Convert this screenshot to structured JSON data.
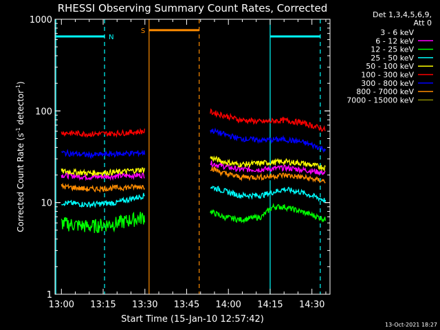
{
  "chart_data": {
    "type": "line",
    "title": "RHESSI Observing Summary Count Rates, Corrected",
    "xlabel": "Start Time (15-Jan-10 12:57:42)",
    "ylabel_main": "Corrected Count Rate (s",
    "ylabel_sup1": "-1",
    "ylabel_mid": " detector",
    "ylabel_sup2": "-1",
    "ylabel_end": ")",
    "yscale": "log",
    "ylim": [
      1,
      1000
    ],
    "xlim_minutes": [
      -2.3,
      96.5
    ],
    "x_ticks": [
      {
        "m": 0,
        "label": "13:00"
      },
      {
        "m": 15,
        "label": "13:15"
      },
      {
        "m": 30,
        "label": "13:30"
      },
      {
        "m": 45,
        "label": "13:45"
      },
      {
        "m": 60,
        "label": "14:00"
      },
      {
        "m": 75,
        "label": "14:15"
      },
      {
        "m": 90,
        "label": "14:30"
      }
    ],
    "y_ticks": [
      {
        "v": 1,
        "label": "1"
      },
      {
        "v": 10,
        "label": "10"
      },
      {
        "v": 100,
        "label": "100"
      },
      {
        "v": 1000,
        "label": "1000"
      }
    ],
    "legend_header_1": "Det 1,3,4,5,6,9,",
    "legend_header_2": "Att 0",
    "legend_placement": "top-right",
    "series": [
      {
        "name": "3 - 6 keV",
        "color": "#000000",
        "seg1": [
          [
            0,
            16
          ],
          [
            10,
            15
          ],
          [
            20,
            15.5
          ],
          [
            30,
            16
          ]
        ],
        "seg2": [
          [
            53.5,
            26
          ],
          [
            58,
            23
          ],
          [
            64,
            20
          ],
          [
            72,
            19
          ],
          [
            80,
            18
          ],
          [
            86,
            18
          ],
          [
            95,
            16
          ]
        ]
      },
      {
        "name": "6 - 12 keV",
        "color": "#ff00ff",
        "seg1": [
          [
            0,
            20
          ],
          [
            10,
            19
          ],
          [
            20,
            19.5
          ],
          [
            30,
            20
          ]
        ],
        "seg2": [
          [
            53.5,
            27
          ],
          [
            58,
            25
          ],
          [
            64,
            23
          ],
          [
            72,
            23
          ],
          [
            80,
            24
          ],
          [
            86,
            23
          ],
          [
            95,
            21
          ]
        ]
      },
      {
        "name": "12 - 25 keV",
        "color": "#00ff00",
        "seg1": [
          [
            0,
            6
          ],
          [
            10,
            5.5
          ],
          [
            20,
            6
          ],
          [
            30,
            7
          ]
        ],
        "seg2": [
          [
            53.5,
            8
          ],
          [
            58,
            7
          ],
          [
            64,
            6.5
          ],
          [
            72,
            7
          ],
          [
            76,
            9
          ],
          [
            80,
            9
          ],
          [
            86,
            8
          ],
          [
            95,
            6.5
          ]
        ]
      },
      {
        "name": "25 - 50 keV",
        "color": "#00ffff",
        "seg1": [
          [
            0,
            10
          ],
          [
            10,
            9.5
          ],
          [
            20,
            10
          ],
          [
            30,
            12
          ]
        ],
        "seg2": [
          [
            53.5,
            15
          ],
          [
            58,
            13.5
          ],
          [
            64,
            12
          ],
          [
            72,
            12
          ],
          [
            80,
            14
          ],
          [
            86,
            13
          ],
          [
            95,
            10.5
          ]
        ]
      },
      {
        "name": "50 - 100 keV",
        "color": "#ffff00",
        "seg1": [
          [
            0,
            22
          ],
          [
            10,
            21
          ],
          [
            20,
            21.5
          ],
          [
            30,
            23
          ]
        ],
        "seg2": [
          [
            53.5,
            31
          ],
          [
            58,
            28
          ],
          [
            64,
            26
          ],
          [
            72,
            27
          ],
          [
            80,
            28
          ],
          [
            86,
            27
          ],
          [
            95,
            24
          ]
        ]
      },
      {
        "name": "100 - 300 keV",
        "color": "#ff0000",
        "seg1": [
          [
            0,
            58
          ],
          [
            10,
            56
          ],
          [
            20,
            57
          ],
          [
            30,
            60
          ]
        ],
        "seg2": [
          [
            53.5,
            98
          ],
          [
            58,
            90
          ],
          [
            64,
            80
          ],
          [
            72,
            76
          ],
          [
            80,
            79
          ],
          [
            86,
            75
          ],
          [
            95,
            62
          ]
        ]
      },
      {
        "name": "300 - 800 keV",
        "color": "#0000ff",
        "seg1": [
          [
            0,
            35
          ],
          [
            10,
            33
          ],
          [
            20,
            34
          ],
          [
            30,
            35
          ]
        ],
        "seg2": [
          [
            53.5,
            62
          ],
          [
            58,
            56
          ],
          [
            64,
            50
          ],
          [
            72,
            48
          ],
          [
            80,
            49
          ],
          [
            86,
            46
          ],
          [
            95,
            38
          ]
        ]
      },
      {
        "name": "800 - 7000 keV",
        "color": "#ff8c00",
        "seg1": [
          [
            0,
            15
          ],
          [
            10,
            14
          ],
          [
            20,
            14.5
          ],
          [
            30,
            15
          ]
        ],
        "seg2": [
          [
            53.5,
            24
          ],
          [
            58,
            21
          ],
          [
            64,
            19
          ],
          [
            72,
            19
          ],
          [
            80,
            20
          ],
          [
            86,
            19
          ],
          [
            95,
            17
          ]
        ]
      },
      {
        "name": "7000 - 15000 keV",
        "color": "#8b8b00",
        "seg1": [],
        "seg2": []
      }
    ],
    "flag_bars": [
      {
        "label": "N",
        "color": "#00ffff",
        "x1": -2.3,
        "x2": 15.5,
        "level": 650
      },
      {
        "label": "",
        "color": "#00ffff",
        "x1": 75,
        "x2": 93,
        "level": 650
      },
      {
        "label": "S",
        "color": "#ff8c00",
        "x1": 31.5,
        "x2": 49.5,
        "level": 760
      }
    ],
    "vlines": [
      {
        "m": -2.0,
        "color": "#00ffff",
        "dashed": false
      },
      {
        "m": 15.5,
        "color": "#00ffff",
        "dashed": true
      },
      {
        "m": 31.5,
        "color": "#ff8c00",
        "dashed": false
      },
      {
        "m": 49.5,
        "color": "#ff8c00",
        "dashed": true
      },
      {
        "m": 75,
        "color": "#00ffff",
        "dashed": false
      },
      {
        "m": 93,
        "color": "#00ffff",
        "dashed": true
      }
    ],
    "footer_date": "13-Oct-2021 18:27"
  }
}
